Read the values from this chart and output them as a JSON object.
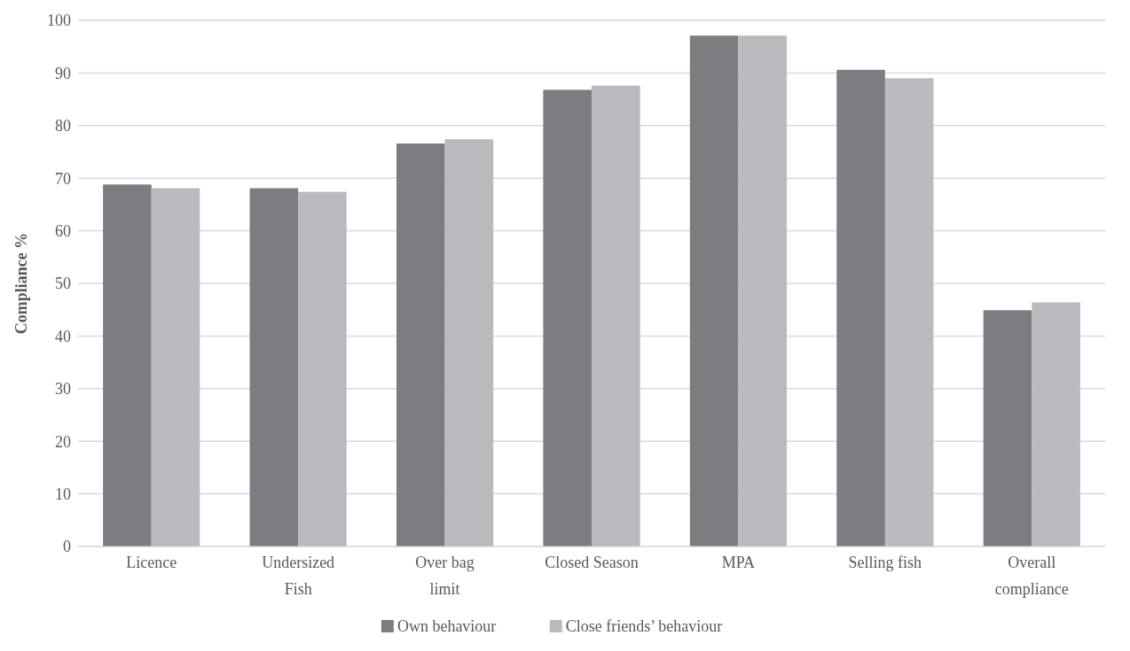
{
  "chart_data": {
    "type": "bar",
    "ylabel": "Compliance %",
    "categories": [
      "Licence",
      "Undersized Fish",
      "Over bag limit",
      "Closed Season",
      "MPA",
      "Selling fish",
      "Overall compliance"
    ],
    "series": [
      {
        "name": "Own behaviour",
        "color": "#7c7d81",
        "values": [
          68.8,
          68.1,
          76.6,
          86.8,
          97.1,
          90.6,
          44.9
        ]
      },
      {
        "name": "Close friends’ behaviour",
        "color": "#b9babe",
        "values": [
          68.1,
          67.4,
          77.4,
          87.6,
          97.1,
          89.0,
          46.4
        ]
      }
    ],
    "ylim": [
      0,
      100
    ],
    "yticks": [
      0,
      10,
      20,
      30,
      40,
      50,
      60,
      70,
      80,
      90,
      100
    ],
    "grid": "y",
    "legend": "bottom"
  }
}
